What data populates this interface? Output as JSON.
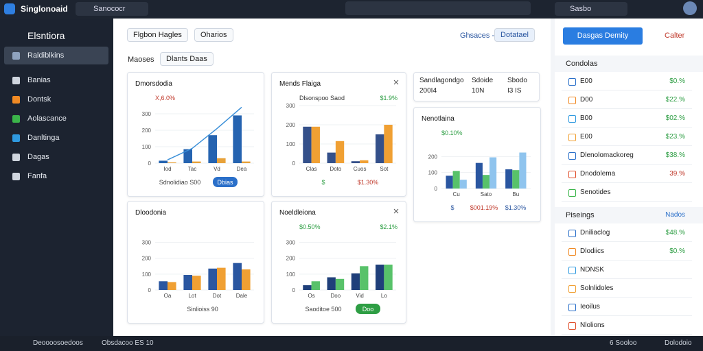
{
  "topbar": {
    "app": "Singlonoaid",
    "search": "Sanococr",
    "user": "Sasbo"
  },
  "sidebar": {
    "title": "Elsntiora",
    "items": [
      "Raldiblkins",
      "Banias",
      "Dontsk",
      "Aolascance",
      "Danltinga",
      "Dagas",
      "Fanfa"
    ]
  },
  "toolbar": {
    "tabs": [
      "Flgbon Hagles",
      "Oharios"
    ],
    "filter_label": "Ghsaces -",
    "action": "Dotatael"
  },
  "filter": {
    "label": "Maoses",
    "chip": "Dlants Daas"
  },
  "side_table": {
    "rows": [
      [
        "Sandlagondgo",
        "Sdoide",
        "Sbodo"
      ],
      [
        "200I4",
        "10N",
        "I3 IS"
      ]
    ]
  },
  "cards": [
    {
      "title": "Dmorsdodia",
      "notes": [
        {
          "text": "X,6.0%",
          "color": "#c0392b"
        }
      ],
      "chart": {
        "type": "bar",
        "categories": [
          "Iod",
          "Tac",
          "Vd",
          "Dea"
        ],
        "ylim": [
          0,
          350
        ],
        "yticks": [
          0,
          100,
          200,
          300
        ],
        "series": [
          {
            "color": "#2563b0",
            "values": [
              15,
              85,
              170,
              290
            ]
          },
          {
            "color": "#e8a23a",
            "values": [
              5,
              10,
              30,
              10
            ]
          }
        ],
        "line": {
          "color": "#3a8fd8",
          "values": [
            20,
            90,
            210,
            340
          ]
        }
      },
      "footer": [
        {
          "text": "Sdnolidiao S00"
        },
        {
          "text": "Dbias",
          "button": true
        }
      ]
    },
    {
      "title": "Mends Flaiga",
      "close": true,
      "notes": [
        {
          "text": "Dlsonspoo Saod",
          "color": "#333333"
        },
        {
          "text": "$1.9%",
          "color": "#2e9e44"
        }
      ],
      "chart": {
        "type": "bar",
        "categories": [
          "Clas",
          "Doto",
          "Cuos",
          "Sot"
        ],
        "ylim": [
          0,
          300
        ],
        "yticks": [
          0,
          100,
          200,
          300
        ],
        "series": [
          {
            "color": "#34508a",
            "values": [
              190,
              55,
              10,
              150
            ]
          },
          {
            "color": "#f0a033",
            "values": [
              190,
              115,
              15,
              200
            ]
          }
        ]
      },
      "footer": [
        {
          "text": "$",
          "color": "#2e9e44"
        },
        {
          "text": "$1.30%",
          "color": "#c0392b"
        }
      ]
    },
    {
      "title": "Nenotlaina",
      "notes": [
        {
          "text": "$0.10%",
          "color": "#2e9e44"
        }
      ],
      "chart": {
        "type": "bar",
        "categories": [
          "Cu",
          "Sato",
          "Bu"
        ],
        "ylim": [
          0,
          300
        ],
        "yticks": [
          0,
          100,
          200
        ],
        "series": [
          {
            "color": "#2a56a0",
            "values": [
              80,
              160,
              120
            ]
          },
          {
            "color": "#58c26a",
            "values": [
              110,
              85,
              115
            ]
          },
          {
            "color": "#8fc4ee",
            "values": [
              55,
              195,
              225
            ]
          }
        ]
      },
      "footer": [
        {
          "text": "$",
          "color": "#2a56a0"
        },
        {
          "text": "$001.19%",
          "color": "#c0392b"
        },
        {
          "text": "$1.30%",
          "color": "#2a56a0"
        }
      ]
    },
    {
      "title": "Dloodonia",
      "notes": [],
      "chart": {
        "type": "bar",
        "categories": [
          "Oa",
          "Lot",
          "Dot",
          "Dale"
        ],
        "ylim": [
          0,
          350
        ],
        "yticks": [
          0,
          100,
          200,
          300
        ],
        "series": [
          {
            "color": "#2a56a0",
            "values": [
              55,
              95,
              135,
              170
            ]
          },
          {
            "color": "#f0a033",
            "values": [
              50,
              90,
              140,
              130
            ]
          }
        ]
      },
      "footer": [
        {
          "text": "Sinlioiss 90"
        }
      ]
    },
    {
      "title": "Noeldleiona",
      "close": true,
      "notes": [
        {
          "text": "$0.50%",
          "color": "#2e9e44"
        },
        {
          "text": "$2.1%",
          "color": "#2e9e44"
        }
      ],
      "chart": {
        "type": "bar",
        "categories": [
          "Os",
          "Doo",
          "Vid",
          "Lo"
        ],
        "ylim": [
          0,
          350
        ],
        "yticks": [
          0,
          100,
          200,
          300
        ],
        "series": [
          {
            "color": "#1f3f7a",
            "values": [
              30,
              80,
              105,
              160
            ]
          },
          {
            "color": "#58c26a",
            "values": [
              55,
              70,
              150,
              160
            ]
          }
        ]
      },
      "footer": [
        {
          "text": "Saoditoe 500"
        },
        {
          "text": "Doo",
          "button": true,
          "color": "#2e9e44"
        }
      ]
    }
  ],
  "right_panel": {
    "button": "Dasgas Demity",
    "secondary": "Calter",
    "sections": [
      {
        "title": "Condolas",
        "rows": [
          {
            "label": "E00",
            "value": "$0.%",
            "color": "#2e9e44"
          },
          {
            "label": "D00",
            "value": "$22.%",
            "color": "#2e9e44"
          },
          {
            "label": "B00",
            "value": "$02.%",
            "color": "#2e9e44"
          },
          {
            "label": "E00",
            "value": "$23.%",
            "color": "#2e9e44"
          },
          {
            "label": "Dlenolomackoreg",
            "value": "$38.%",
            "color": "#2e9e44"
          },
          {
            "label": "Dnodolema",
            "value": "39.%",
            "color": "#c0392b"
          },
          {
            "label": "Senotides"
          }
        ]
      },
      {
        "title": "Piseings",
        "link": "Nados",
        "rows": [
          {
            "label": "Dniliaclog",
            "value": "$48.%",
            "color": "#2e9e44"
          },
          {
            "label": "Dlodiics",
            "value": "$0.%",
            "color": "#2e9e44"
          },
          {
            "label": "NDNSK"
          },
          {
            "label": "Solnlidoles"
          },
          {
            "label": "Ieoilus"
          },
          {
            "label": "Nlolions"
          }
        ]
      }
    ]
  },
  "statusbar": {
    "left": [
      "Deoooosoedoos",
      "Obsdacoo ES 10"
    ],
    "right": [
      "6 Sooloo",
      "Dolodoio"
    ]
  }
}
